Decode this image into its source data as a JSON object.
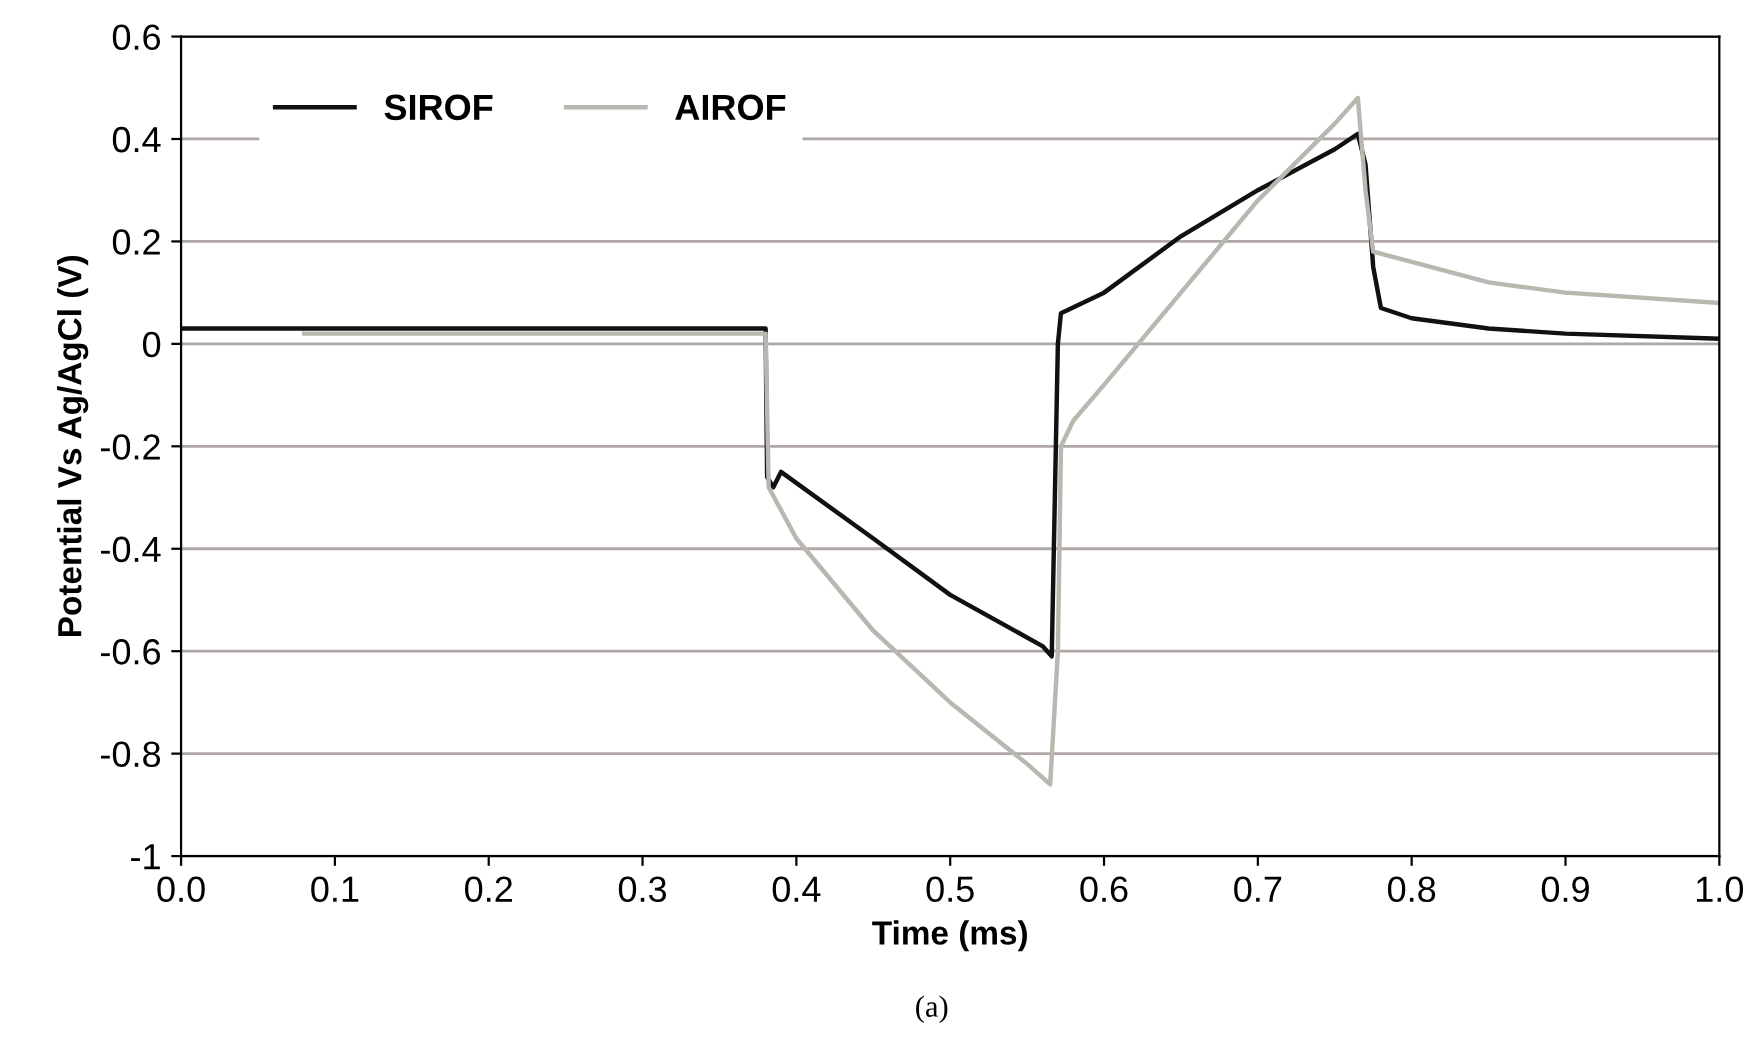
{
  "chart_data": {
    "type": "line",
    "xlabel": "Time (ms)",
    "ylabel": "Potential Vs Ag/AgCl (V)",
    "annotations": [
      "(a)"
    ],
    "xlim": [
      0,
      1
    ],
    "ylim": [
      -1,
      0.6
    ],
    "xticks": [
      {
        "value": 0,
        "label": "0.0"
      },
      0.1,
      0.2,
      0.3,
      0.4,
      0.5,
      0.6,
      0.7,
      0.8,
      0.9,
      {
        "value": 1,
        "label": "1.0"
      }
    ],
    "yticks": [
      {
        "value": -1,
        "label": "-1"
      },
      {
        "value": -0.8,
        "label": "-0.8"
      },
      {
        "value": -0.6,
        "label": "-0.6"
      },
      {
        "value": -0.4,
        "label": "-0.4"
      },
      {
        "value": -0.2,
        "label": "-0.2"
      },
      0,
      0.2,
      0.4,
      0.6
    ],
    "grid": "y",
    "legend": "top left",
    "marker": "none",
    "line_style": "solid",
    "series": [
      {
        "name": "SIROF",
        "color": "#111111",
        "x": [
          0,
          0.38,
          0.381,
          0.385,
          0.39,
          0.45,
          0.5,
          0.56,
          0.566,
          0.57,
          0.572,
          0.6,
          0.65,
          0.7,
          0.75,
          0.765,
          0.77,
          0.775,
          0.78,
          0.8,
          0.85,
          0.9,
          1.0
        ],
        "values": [
          0.03,
          0.03,
          -0.26,
          -0.28,
          -0.25,
          -0.38,
          -0.49,
          -0.59,
          -0.61,
          0.0,
          0.06,
          0.1,
          0.21,
          0.3,
          0.38,
          0.41,
          0.35,
          0.15,
          0.07,
          0.05,
          0.03,
          0.02,
          0.01
        ]
      },
      {
        "name": "AIROF",
        "color": "#b8b8b0",
        "x": [
          0.08,
          0.38,
          0.382,
          0.4,
          0.45,
          0.5,
          0.55,
          0.565,
          0.57,
          0.572,
          0.58,
          0.6,
          0.65,
          0.7,
          0.75,
          0.765,
          0.77,
          0.775,
          0.8,
          0.85,
          0.9,
          1.0
        ],
        "values": [
          0.02,
          0.02,
          -0.28,
          -0.38,
          -0.56,
          -0.7,
          -0.82,
          -0.86,
          -0.6,
          -0.2,
          -0.15,
          -0.08,
          0.1,
          0.28,
          0.43,
          0.48,
          0.3,
          0.18,
          0.16,
          0.12,
          0.1,
          0.08
        ]
      }
    ]
  }
}
